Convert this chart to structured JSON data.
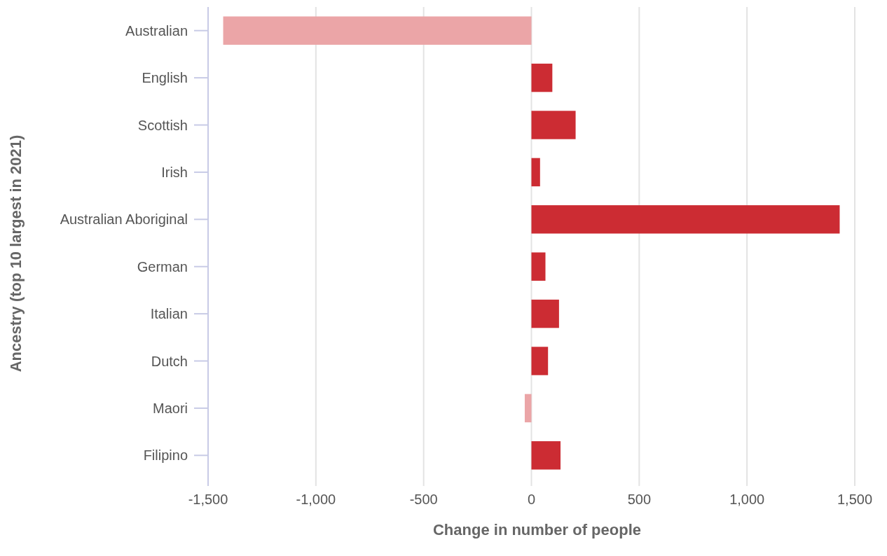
{
  "chart_data": {
    "type": "bar",
    "orientation": "horizontal",
    "xlabel": "Change in number of people",
    "ylabel": "Ancestry (top 10 largest in 2021)",
    "categories": [
      "Australian",
      "English",
      "Scottish",
      "Irish",
      "Australian Aboriginal",
      "German",
      "Italian",
      "Dutch",
      "Maori",
      "Filipino"
    ],
    "values": [
      -1430,
      97,
      205,
      40,
      1430,
      65,
      128,
      77,
      -31,
      135
    ],
    "colors": [
      "#eba5a7",
      "#cc2c33",
      "#cc2c33",
      "#cc2c33",
      "#cc2c33",
      "#cc2c33",
      "#cc2c33",
      "#cc2c33",
      "#eba5a7",
      "#cc2c33"
    ],
    "xlim": [
      -1500,
      1500
    ],
    "xticks": [
      {
        "value": -1500,
        "label": "-1,500"
      },
      {
        "value": -1000,
        "label": "-1,000"
      },
      -500,
      0,
      500,
      {
        "value": 1000,
        "label": "1,000"
      },
      {
        "value": 1500,
        "label": "1,500"
      }
    ],
    "grid": "x"
  }
}
